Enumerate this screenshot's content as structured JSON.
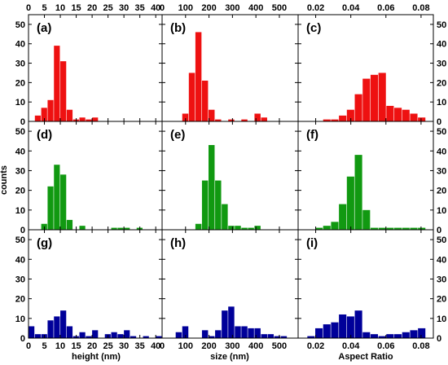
{
  "figure": {
    "ylabel": "counts",
    "colors": {
      "row1": "#ee1111",
      "row2": "#119911",
      "row3": "#000099",
      "frame": "#000000"
    }
  },
  "chart_data": [
    {
      "type": "bar",
      "label": "(a)",
      "row": 1,
      "col": 1,
      "xlabel": "height (nm)",
      "xlim": [
        0,
        42
      ],
      "ylim": [
        0,
        55
      ],
      "bar_width": 2,
      "x": [
        3,
        5,
        7,
        9,
        11,
        13,
        15,
        17,
        19,
        21
      ],
      "values": [
        3,
        7,
        11,
        39,
        31,
        6,
        1,
        2,
        1,
        2
      ]
    },
    {
      "type": "bar",
      "label": "(b)",
      "row": 1,
      "col": 2,
      "xlabel": "size (nm)",
      "xlim": [
        0,
        580
      ],
      "ylim": [
        0,
        55
      ],
      "bar_width": 28,
      "x": [
        100,
        128,
        156,
        184,
        212,
        240,
        296,
        352,
        408,
        436
      ],
      "values": [
        4,
        25,
        46,
        21,
        6,
        1,
        1,
        1,
        4,
        2
      ]
    },
    {
      "type": "bar",
      "label": "(c)",
      "row": 1,
      "col": 3,
      "xlabel": "Aspect Ratio",
      "xlim": [
        0.01,
        0.087
      ],
      "ylim": [
        0,
        55
      ],
      "bar_width": 0.0045,
      "x": [
        0.0265,
        0.031,
        0.0355,
        0.04,
        0.0445,
        0.049,
        0.0535,
        0.058,
        0.0625,
        0.067,
        0.0715,
        0.076,
        0.0805
      ],
      "values": [
        1,
        1,
        3,
        6,
        14,
        22,
        24,
        25,
        8,
        7,
        6,
        4,
        2
      ]
    },
    {
      "type": "bar",
      "label": "(d)",
      "row": 2,
      "col": 1,
      "xlabel": "height (nm)",
      "xlim": [
        0,
        42
      ],
      "ylim": [
        0,
        55
      ],
      "bar_width": 2,
      "x": [
        5,
        7,
        9,
        11,
        13,
        17,
        27,
        29,
        31,
        35
      ],
      "values": [
        3,
        22,
        33,
        28,
        5,
        2,
        1,
        1,
        1,
        1
      ]
    },
    {
      "type": "bar",
      "label": "(e)",
      "row": 2,
      "col": 2,
      "xlabel": "size (nm)",
      "xlim": [
        0,
        580
      ],
      "ylim": [
        0,
        55
      ],
      "bar_width": 28,
      "x": [
        156,
        184,
        212,
        240,
        268,
        296,
        324,
        352,
        380,
        408
      ],
      "values": [
        3,
        25,
        43,
        25,
        13,
        2,
        2,
        1,
        1,
        2
      ]
    },
    {
      "type": "bar",
      "label": "(f)",
      "row": 2,
      "col": 3,
      "xlabel": "Aspect Ratio",
      "xlim": [
        0.01,
        0.087
      ],
      "ylim": [
        0,
        55
      ],
      "bar_width": 0.0045,
      "x": [
        0.022,
        0.0265,
        0.031,
        0.0355,
        0.04,
        0.0445,
        0.049,
        0.0535,
        0.058,
        0.0625,
        0.067,
        0.0715,
        0.076,
        0.0805
      ],
      "values": [
        1,
        2,
        4,
        13,
        27,
        38,
        10,
        1,
        1,
        1,
        1,
        1,
        1,
        1
      ]
    },
    {
      "type": "bar",
      "label": "(g)",
      "row": 3,
      "col": 1,
      "xlabel": "height (nm)",
      "xlim": [
        0,
        42
      ],
      "ylim": [
        0,
        55
      ],
      "bar_width": 2,
      "x": [
        1,
        3,
        5,
        7,
        9,
        11,
        13,
        15,
        17,
        19,
        21,
        25,
        27,
        29,
        31,
        33,
        37,
        41
      ],
      "values": [
        6,
        2,
        2,
        9,
        11,
        14,
        6,
        1,
        3,
        1,
        4,
        2,
        3,
        2,
        4,
        1,
        1,
        1
      ]
    },
    {
      "type": "bar",
      "label": "(h)",
      "row": 3,
      "col": 2,
      "xlabel": "size (nm)",
      "xlim": [
        0,
        580
      ],
      "ylim": [
        0,
        55
      ],
      "bar_width": 28,
      "x": [
        72,
        100,
        184,
        212,
        240,
        268,
        296,
        324,
        352,
        380,
        408,
        436,
        464,
        492,
        520
      ],
      "values": [
        3,
        6,
        4,
        1,
        4,
        14,
        16,
        6,
        6,
        5,
        5,
        2,
        2,
        1,
        1
      ]
    },
    {
      "type": "bar",
      "label": "(i)",
      "row": 3,
      "col": 3,
      "xlabel": "Aspect Ratio",
      "xlim": [
        0.01,
        0.087
      ],
      "ylim": [
        0,
        55
      ],
      "bar_width": 0.0045,
      "x": [
        0.0175,
        0.022,
        0.0265,
        0.031,
        0.0355,
        0.04,
        0.0445,
        0.049,
        0.0535,
        0.058,
        0.0625,
        0.067,
        0.0715,
        0.076,
        0.0805
      ],
      "values": [
        1,
        5,
        7,
        8,
        12,
        11,
        14,
        3,
        2,
        1,
        2,
        2,
        3,
        4,
        5
      ]
    }
  ],
  "axes": {
    "counts_ticks": [
      0,
      10,
      20,
      30,
      40,
      50
    ],
    "height_ticks": [
      "0",
      "5",
      "10",
      "15",
      "20",
      "25",
      "30",
      "35",
      "40"
    ],
    "height_values": [
      0,
      5,
      10,
      15,
      20,
      25,
      30,
      35,
      40
    ],
    "size_ticks": [
      "0",
      "100",
      "200",
      "300",
      "400",
      "500"
    ],
    "size_values": [
      0,
      100,
      200,
      300,
      400,
      500
    ],
    "ratio_ticks": [
      "0.02",
      "0.04",
      "0.06",
      "0.08"
    ],
    "ratio_values": [
      0.02,
      0.04,
      0.06,
      0.08
    ]
  }
}
